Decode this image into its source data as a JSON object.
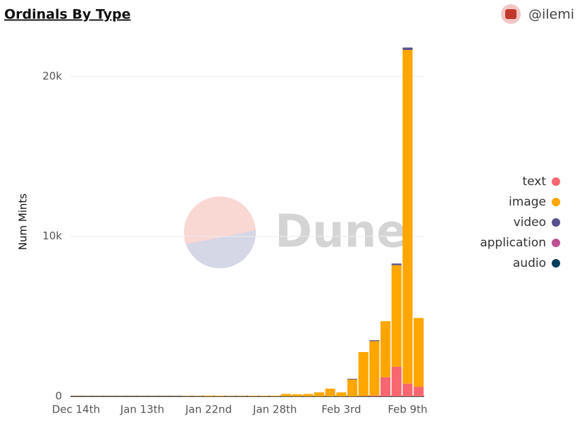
{
  "header": {
    "title": "Ordinals By Type",
    "author": "@ilemi"
  },
  "chart_data": {
    "type": "bar",
    "stacked": true,
    "watermark": "Dune",
    "y_label": "Num Mints",
    "categories": [
      "Dec 14th",
      null,
      null,
      null,
      null,
      null,
      "Jan 13th",
      null,
      null,
      null,
      null,
      null,
      "Jan 22nd",
      null,
      null,
      null,
      null,
      null,
      "Jan 28th",
      null,
      null,
      null,
      null,
      null,
      "Feb 3rd",
      null,
      null,
      null,
      null,
      null,
      "Feb 9th",
      null
    ],
    "series": [
      {
        "name": "text",
        "color": "#f8666f",
        "values": [
          0,
          0,
          0,
          0,
          0,
          0,
          0,
          0,
          0,
          0,
          0,
          0,
          0,
          0,
          0,
          0,
          0,
          0,
          0,
          0,
          0,
          0,
          0,
          0,
          0,
          0,
          20,
          50,
          1200,
          1850,
          800,
          600
        ]
      },
      {
        "name": "image",
        "color": "#ffa600",
        "values": [
          10,
          10,
          10,
          10,
          10,
          10,
          10,
          10,
          10,
          10,
          20,
          20,
          50,
          40,
          20,
          20,
          30,
          30,
          40,
          150,
          130,
          150,
          250,
          480,
          250,
          1060,
          2750,
          3400,
          3500,
          6350,
          20850,
          4300
        ]
      },
      {
        "name": "video",
        "color": "#58508d",
        "values": [
          0,
          0,
          0,
          0,
          0,
          0,
          0,
          0,
          0,
          0,
          0,
          0,
          0,
          0,
          0,
          0,
          0,
          0,
          0,
          0,
          0,
          0,
          0,
          0,
          0,
          40,
          0,
          60,
          0,
          100,
          150,
          0
        ]
      },
      {
        "name": "application",
        "color": "#bc5090",
        "values": [
          0,
          0,
          0,
          0,
          0,
          0,
          0,
          0,
          0,
          0,
          0,
          0,
          0,
          0,
          0,
          0,
          0,
          0,
          0,
          0,
          0,
          0,
          0,
          0,
          0,
          0,
          0,
          0,
          0,
          0,
          0,
          0
        ]
      },
      {
        "name": "audio",
        "color": "#003f5c",
        "values": [
          0,
          0,
          0,
          0,
          0,
          0,
          0,
          0,
          0,
          0,
          0,
          0,
          0,
          0,
          0,
          0,
          0,
          0,
          0,
          0,
          0,
          0,
          0,
          0,
          0,
          0,
          0,
          0,
          0,
          0,
          0,
          0
        ]
      }
    ],
    "ylim": [
      0,
      22000
    ],
    "yticks": [
      0,
      {
        "value": 10000,
        "label": "10k"
      },
      {
        "value": 20000,
        "label": "20k"
      }
    ],
    "grid": true,
    "legend": "right"
  }
}
